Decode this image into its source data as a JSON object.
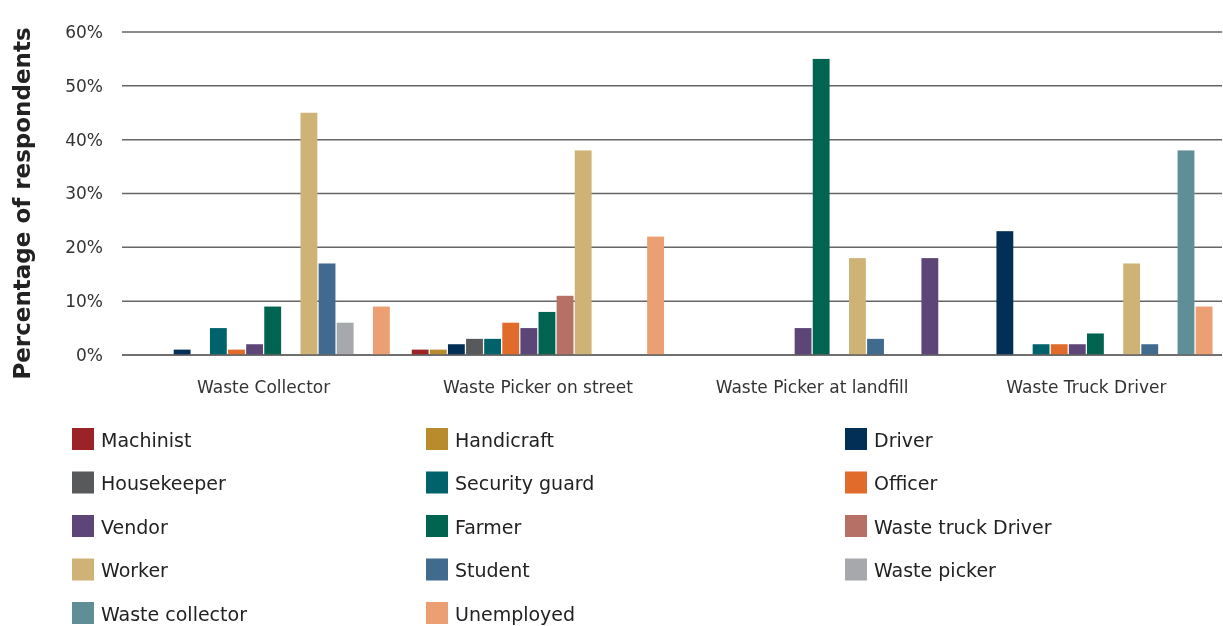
{
  "chart_data": {
    "type": "bar",
    "ylabel": "Percentage of respondents",
    "categories": [
      "Waste Collector",
      "Waste Picker on street",
      "Waste Picker at landfill",
      "Waste Truck Driver"
    ],
    "ylim": [
      0,
      60
    ],
    "yticks": [
      {
        "value": 0,
        "label": "0%"
      },
      {
        "value": 10,
        "label": "10%"
      },
      {
        "value": 20,
        "label": "20%"
      },
      {
        "value": 30,
        "label": "30%"
      },
      {
        "value": 40,
        "label": "40%"
      },
      {
        "value": 50,
        "label": "50%"
      },
      {
        "value": 60,
        "label": "60%"
      }
    ],
    "grid": "y",
    "legend": "bottom",
    "series": [
      {
        "name": "Machinist",
        "color": "#9b2226",
        "values": [
          0,
          1,
          0,
          0
        ]
      },
      {
        "name": "Handicraft",
        "color": "#b88c2c",
        "values": [
          0,
          1,
          0,
          0
        ]
      },
      {
        "name": "Driver",
        "color": "#022f56",
        "values": [
          1,
          2,
          0,
          23
        ]
      },
      {
        "name": "Housekeeper",
        "color": "#58595b",
        "values": [
          0,
          3,
          0,
          0
        ]
      },
      {
        "name": "Security guard",
        "color": "#00636b",
        "values": [
          5,
          3,
          0,
          2
        ]
      },
      {
        "name": "Officer",
        "color": "#e06b2b",
        "values": [
          1,
          6,
          0,
          2
        ]
      },
      {
        "name": "Vendor",
        "color": "#5d4677",
        "values": [
          2,
          5,
          5,
          2
        ]
      },
      {
        "name": "Farmer",
        "color": "#016450",
        "values": [
          9,
          8,
          55,
          4
        ]
      },
      {
        "name": "Waste truck Driver",
        "color": "#b77065",
        "values": [
          0,
          11,
          0,
          0
        ]
      },
      {
        "name": "Worker",
        "color": "#cfb275",
        "values": [
          45,
          38,
          18,
          17
        ]
      },
      {
        "name": "Student",
        "color": "#406a8e",
        "values": [
          17,
          0,
          3,
          2
        ]
      },
      {
        "name": "Waste picker",
        "color": "#a7a8ab",
        "values": [
          6,
          0,
          0,
          0
        ]
      },
      {
        "name": "Waste collector",
        "color": "#5f8e97",
        "values": [
          0,
          0,
          0,
          38
        ]
      },
      {
        "name": "Unemployed",
        "color": "#eb9f72",
        "colors": [
          "#eb9f72",
          "#eb9f72",
          "#5d4677",
          "#eb9f72"
        ],
        "values": [
          9,
          22,
          18,
          9
        ]
      }
    ]
  }
}
